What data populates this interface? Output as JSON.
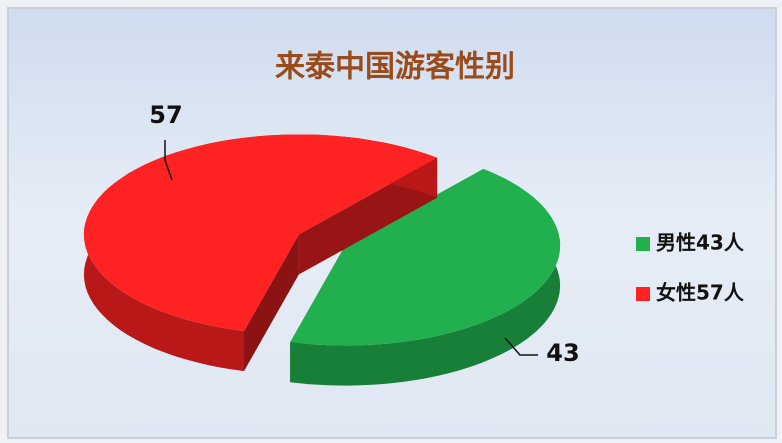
{
  "chart_data": {
    "type": "pie",
    "title": "来泰中国游客性别",
    "categories": [
      "男性43人",
      "女性57人"
    ],
    "values": [
      43,
      57
    ],
    "colors": [
      "#22b04f",
      "#ff2222"
    ],
    "legend": "right"
  }
}
